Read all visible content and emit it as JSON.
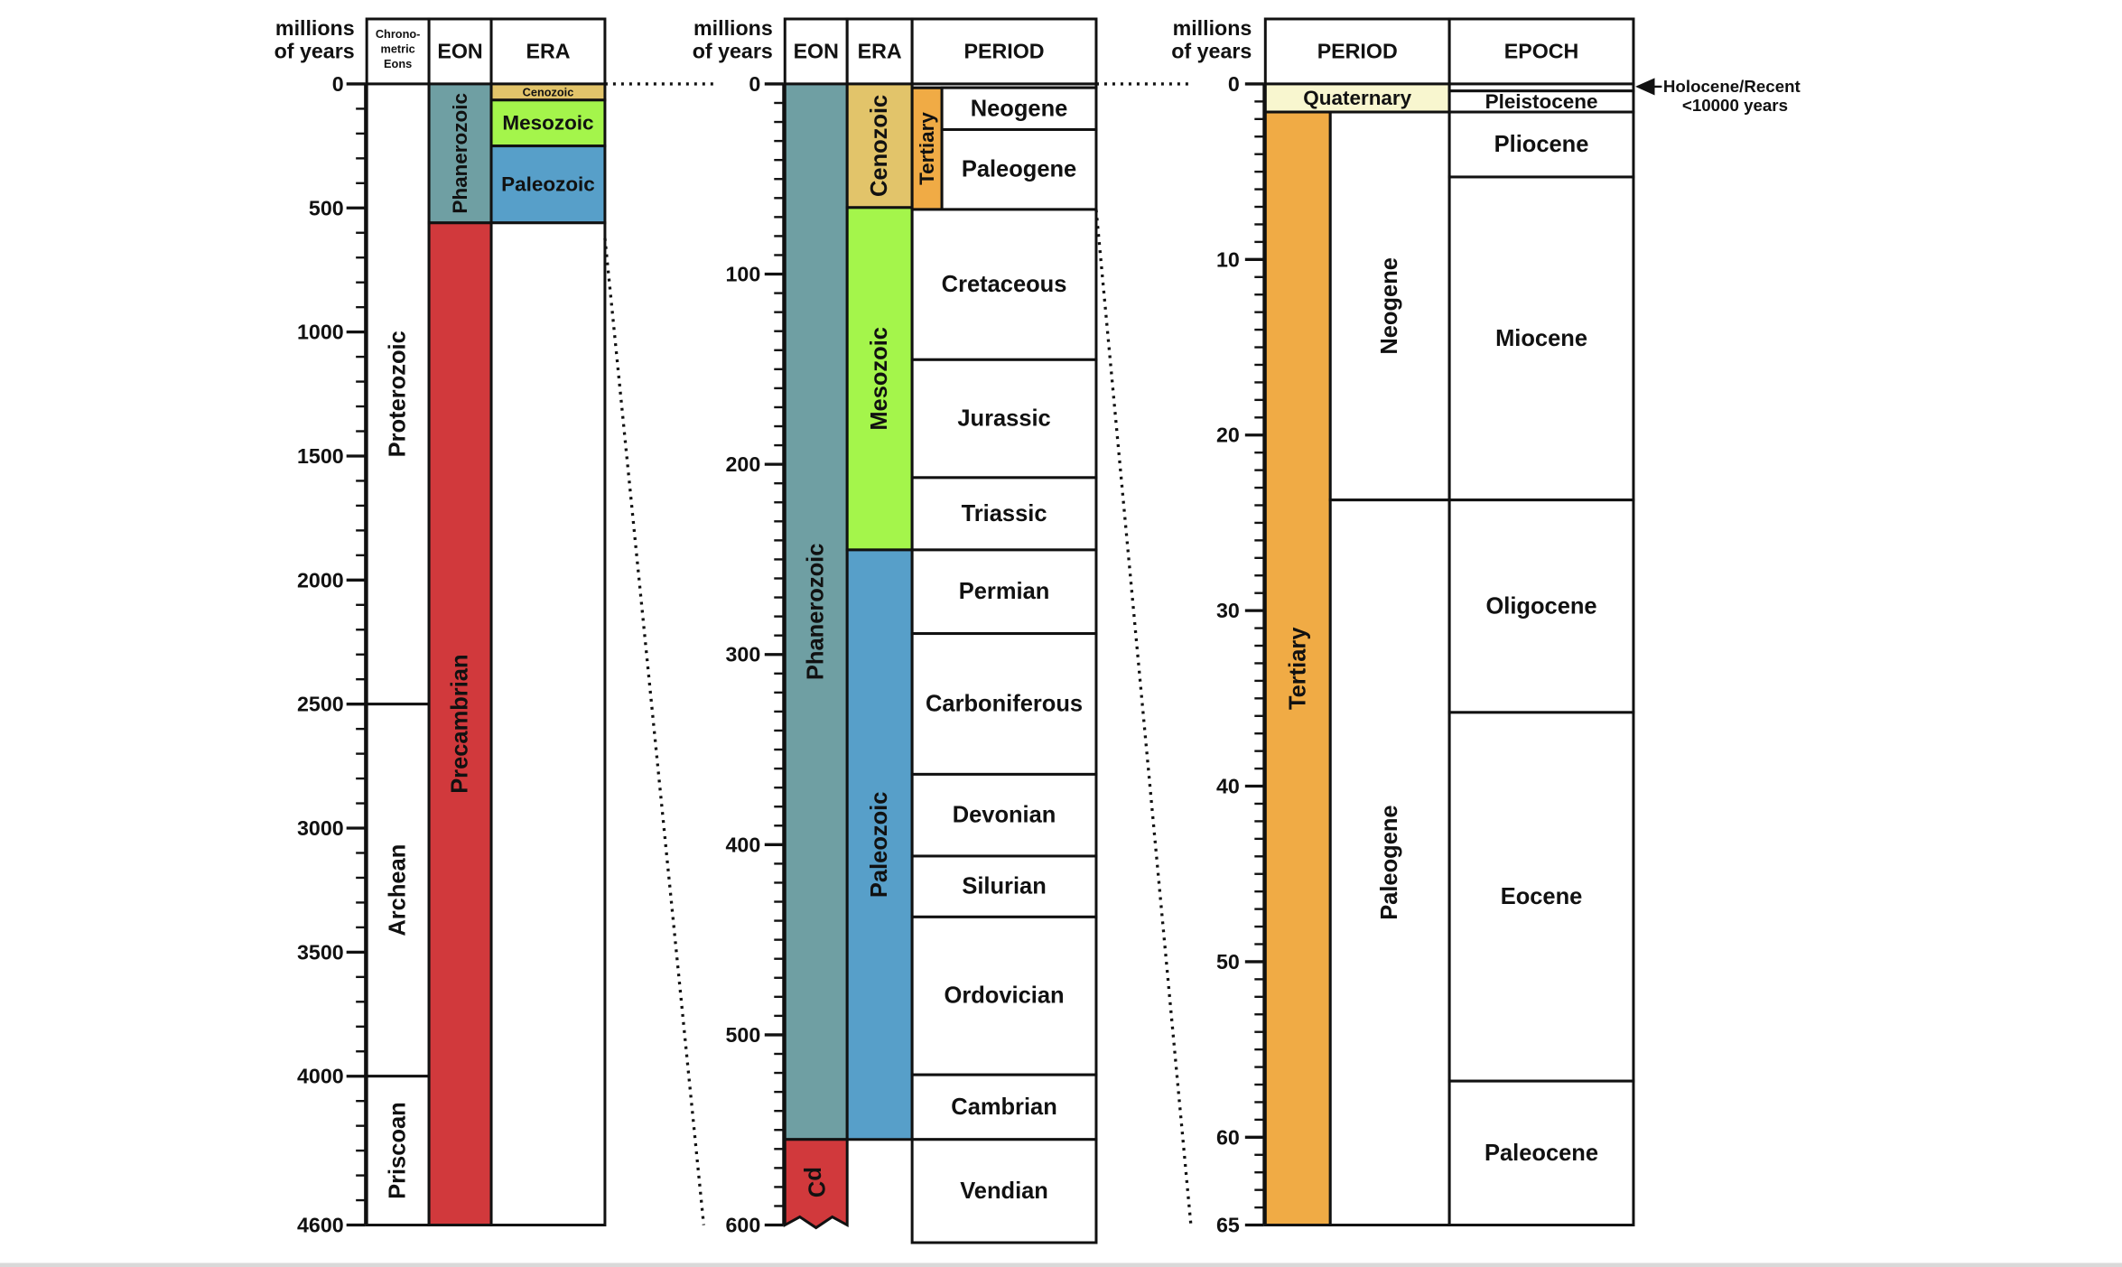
{
  "colors": {
    "phanerozoic": "#6f9fa3",
    "precambrian": "#d1393c",
    "cenozoic": "#e2c46a",
    "mesozoic": "#a4f54b",
    "paleozoic": "#579fc9",
    "tertiary": "#f0ab45",
    "quaternary": "#f8f6cf",
    "border": "#111111",
    "footer_bar": "#d9d9d9"
  },
  "headers": {
    "millions_line1": "millions",
    "millions_line2": "of years",
    "chronometric_line1": "Chrono-",
    "chronometric_line2": "metric",
    "chronometric_line3": "Eons",
    "eon": "EON",
    "era": "ERA",
    "period": "PERIOD",
    "epoch": "EPOCH"
  },
  "panel1": {
    "scale_max": 4600,
    "ticks": [
      "0",
      "500",
      "1000",
      "1500",
      "2000",
      "2500",
      "3000",
      "3500",
      "4000",
      "4600"
    ],
    "chronometric_eons": [
      {
        "name": "Proterozoic",
        "start": 0,
        "end": 2500,
        "label": "Proterozoic"
      },
      {
        "name": "Archean",
        "start": 2500,
        "end": 4000,
        "label": "Archean"
      },
      {
        "name": "Priscoan",
        "start": 4000,
        "end": 4600,
        "label": "Priscoan"
      }
    ],
    "eons": [
      {
        "name": "Phanerozoic",
        "start": 0,
        "end": 560,
        "label": "Phanerozoic",
        "color_key": "phanerozoic"
      },
      {
        "name": "Precambrian",
        "start": 560,
        "end": 4600,
        "label": "Precambrian",
        "color_key": "precambrian"
      }
    ],
    "eras": [
      {
        "name": "Cenozoic",
        "start": 0,
        "end": 65,
        "label": "Cenozoic",
        "color_key": "cenozoic"
      },
      {
        "name": "Mesozoic",
        "start": 65,
        "end": 250,
        "label": "Mesozoic",
        "color_key": "mesozoic"
      },
      {
        "name": "Paleozoic",
        "start": 250,
        "end": 560,
        "label": "Paleozoic",
        "color_key": "paleozoic"
      }
    ]
  },
  "panel2": {
    "scale_max": 600,
    "ticks": [
      "0",
      "100",
      "200",
      "300",
      "400",
      "500",
      "600"
    ],
    "eons": [
      {
        "name": "Phanerozoic",
        "start": 0,
        "end": 555,
        "label": "Phanerozoic",
        "color_key": "phanerozoic"
      },
      {
        "name": "Precambrian",
        "start": 555,
        "end": 600,
        "label": "pƆ",
        "color_key": "precambrian"
      }
    ],
    "eras": [
      {
        "name": "Cenozoic",
        "start": 0,
        "end": 65,
        "label": "Cenozoic",
        "color_key": "cenozoic"
      },
      {
        "name": "Mesozoic",
        "start": 65,
        "end": 245,
        "label": "Mesozoic",
        "color_key": "mesozoic"
      },
      {
        "name": "Paleozoic",
        "start": 245,
        "end": 555,
        "label": "Paleozoic",
        "color_key": "paleozoic"
      }
    ],
    "tertiary_label": "Tertiary",
    "periods": [
      {
        "start": 2,
        "end": 24,
        "label": "Neogene"
      },
      {
        "start": 24,
        "end": 66,
        "label": "Paleogene"
      },
      {
        "start": 66,
        "end": 145,
        "label": "Cretaceous"
      },
      {
        "start": 145,
        "end": 207,
        "label": "Jurassic"
      },
      {
        "start": 207,
        "end": 245,
        "label": "Triassic"
      },
      {
        "start": 245,
        "end": 289,
        "label": "Permian"
      },
      {
        "start": 289,
        "end": 363,
        "label": "Carboniferous"
      },
      {
        "start": 363,
        "end": 406,
        "label": "Devonian"
      },
      {
        "start": 406,
        "end": 438,
        "label": "Silurian"
      },
      {
        "start": 438,
        "end": 521,
        "label": "Ordovician"
      },
      {
        "start": 521,
        "end": 555,
        "label": "Cambrian"
      },
      {
        "start": 555,
        "end": 610,
        "label": "Vendian"
      }
    ]
  },
  "panel3": {
    "scale_max": 65,
    "ticks": [
      "0",
      "10",
      "20",
      "30",
      "40",
      "50",
      "60",
      "65"
    ],
    "quaternary": {
      "start": 0,
      "end": 1.6,
      "label": "Quaternary"
    },
    "tertiary": {
      "start": 1.6,
      "end": 65,
      "label": "Tertiary"
    },
    "subperiods": [
      {
        "start": 1.6,
        "end": 23.7,
        "label": "Neogene"
      },
      {
        "start": 23.7,
        "end": 65,
        "label": "Paleogene"
      }
    ],
    "epochs": [
      {
        "start": 0.4,
        "end": 1.6,
        "label": "Pleistocene"
      },
      {
        "start": 1.6,
        "end": 5.3,
        "label": "Pliocene"
      },
      {
        "start": 5.3,
        "end": 23.7,
        "label": "Miocene"
      },
      {
        "start": 23.7,
        "end": 35.8,
        "label": "Oligocene"
      },
      {
        "start": 35.8,
        "end": 56.8,
        "label": "Eocene"
      },
      {
        "start": 56.8,
        "end": 65,
        "label": "Paleocene"
      }
    ],
    "holocene_line1": "Holocene/Recent",
    "holocene_line2": "<10000 years"
  }
}
